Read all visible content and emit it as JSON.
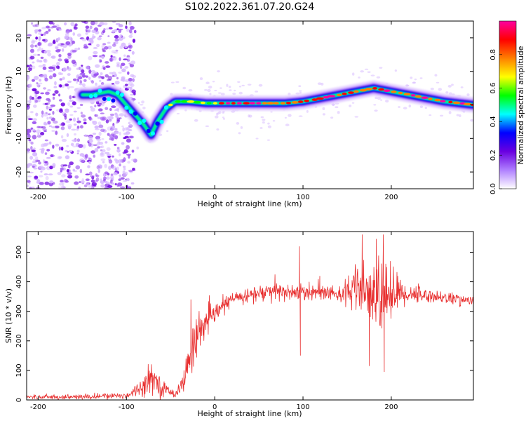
{
  "title": "S102.2022.361.07.20.G24",
  "chart_data": [
    {
      "type": "heatmap",
      "xlabel": "Height of straight line (km)",
      "ylabel": "Frequency (Hz)",
      "xlim": [
        -213,
        293
      ],
      "ylim": [
        -25,
        25
      ],
      "xticks": [
        -200,
        -100,
        0,
        100,
        200
      ],
      "yticks": [
        -20,
        -10,
        0,
        10,
        20
      ],
      "colorbar": {
        "label": "Normalized spectral amplitude",
        "range": [
          0,
          1
        ],
        "ticks": [
          "0.0",
          "0.2",
          "0.4",
          "0.6",
          "0.8"
        ],
        "tick_values": [
          0.0,
          0.2,
          0.4,
          0.6,
          0.8
        ],
        "colors": [
          "#ffffff",
          "#b080ff",
          "#6a00e0",
          "#0000ff",
          "#00ffff",
          "#00ff00",
          "#ffff00",
          "#ff8000",
          "#ff0000",
          "#ff00a0"
        ]
      },
      "ridge": {
        "x": [
          -140,
          -120,
          -110,
          -100,
          -90,
          -80,
          -72,
          -65,
          -55,
          -45,
          -30,
          -10,
          0,
          20,
          50,
          80,
          100,
          120,
          140,
          160,
          180,
          200,
          220,
          240,
          260,
          293
        ],
        "freq": [
          3,
          4,
          3,
          0,
          -3,
          -6,
          -9,
          -5,
          -1,
          1,
          1,
          0.5,
          0.5,
          0.5,
          0.5,
          0.5,
          1,
          2,
          3,
          4,
          5,
          4,
          3,
          2,
          1,
          0
        ]
      }
    },
    {
      "type": "line",
      "xlabel": "Height of straight line (km)",
      "ylabel": "SNR (10 * v/v)",
      "xlim": [
        -213,
        293
      ],
      "ylim": [
        0,
        570
      ],
      "xticks": [
        -200,
        -100,
        0,
        100,
        200
      ],
      "yticks": [
        0,
        100,
        200,
        300,
        400,
        500
      ],
      "color": "#e83030",
      "envelope": {
        "x": [
          -213,
          -150,
          -100,
          -85,
          -70,
          -60,
          -45,
          -35,
          -28,
          -20,
          -10,
          0,
          10,
          20,
          30,
          40,
          50,
          60,
          80,
          100,
          120,
          140,
          160,
          180,
          190,
          200,
          220,
          250,
          293
        ],
        "mean": [
          10,
          10,
          15,
          40,
          80,
          40,
          20,
          60,
          150,
          230,
          260,
          290,
          320,
          340,
          350,
          355,
          360,
          365,
          365,
          365,
          365,
          360,
          370,
          350,
          350,
          360,
          360,
          350,
          335
        ],
        "spread": [
          6,
          8,
          10,
          25,
          45,
          25,
          12,
          30,
          80,
          60,
          45,
          30,
          25,
          22,
          20,
          30,
          25,
          35,
          30,
          25,
          22,
          25,
          70,
          110,
          120,
          80,
          30,
          20,
          15
        ]
      },
      "spikes": [
        {
          "x": -27,
          "y": 340
        },
        {
          "x": 58,
          "y": 375
        },
        {
          "x": 96,
          "y": 520
        },
        {
          "x": 97,
          "y": 150
        },
        {
          "x": 83,
          "y": 390
        },
        {
          "x": 107,
          "y": 400
        },
        {
          "x": 119,
          "y": 420
        },
        {
          "x": 167,
          "y": 560
        },
        {
          "x": 183,
          "y": 545
        },
        {
          "x": 191,
          "y": 560
        },
        {
          "x": 199,
          "y": 470
        },
        {
          "x": 175,
          "y": 115
        },
        {
          "x": 192,
          "y": 95
        }
      ]
    }
  ]
}
